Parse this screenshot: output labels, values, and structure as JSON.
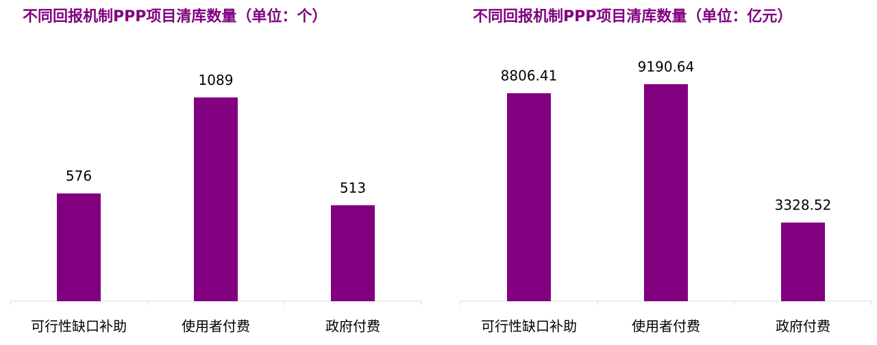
{
  "chart_data": [
    {
      "type": "bar",
      "title": "不同回报机制PPP项目清库数量（单位：个）",
      "categories": [
        "可行性缺口补助",
        "使用者付费",
        "政府付费"
      ],
      "values": [
        576,
        1089,
        513
      ],
      "color": "#800080",
      "ylim": [
        0,
        1200
      ]
    },
    {
      "type": "bar",
      "title": "不同回报机制PPP项目清库数量（单位：亿元）",
      "categories": [
        "可行性缺口补助",
        "使用者付费",
        "政府付费"
      ],
      "values": [
        8806.41,
        9190.64,
        3328.52
      ],
      "color": "#800080",
      "ylim": [
        0,
        10000
      ]
    }
  ]
}
